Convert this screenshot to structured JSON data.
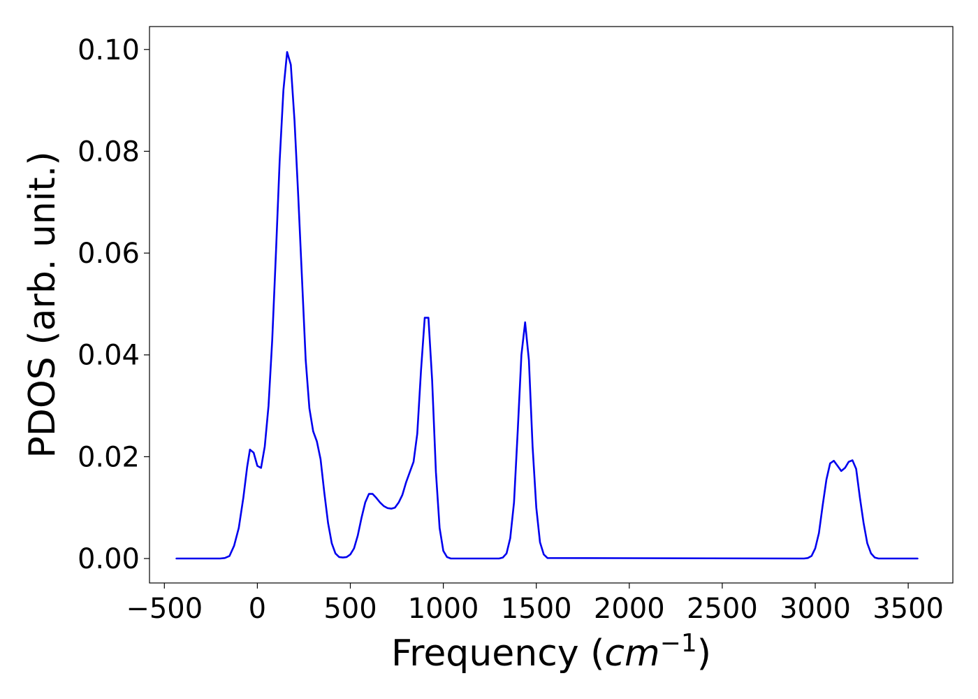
{
  "chart_data": {
    "type": "line",
    "title": "",
    "xlabel_main": "Frequency (",
    "xlabel_unit": "cm",
    "xlabel_exp": "−1",
    "xlabel_close": ")",
    "ylabel": "PDOS (arb. unit.)",
    "xlim": [
      -580,
      3740
    ],
    "ylim": [
      -0.0048,
      0.1045
    ],
    "xticks": [
      -500,
      0,
      500,
      1000,
      1500,
      2000,
      2500,
      3000,
      3500
    ],
    "xtick_labels": [
      "−500",
      "0",
      "500",
      "1000",
      "1500",
      "2000",
      "2500",
      "3000",
      "3500"
    ],
    "yticks": [
      0.0,
      0.02,
      0.04,
      0.06,
      0.08,
      0.1
    ],
    "ytick_labels": [
      "0.00",
      "0.02",
      "0.04",
      "0.06",
      "0.08",
      "0.10"
    ],
    "grid": false,
    "legend": "none",
    "line_color": "#0000ee",
    "series": [
      {
        "x": [
          -435,
          -200,
          -175,
          -150,
          -125,
          -100,
          -75,
          -55,
          -40,
          -20,
          0,
          20,
          40,
          60,
          80,
          100,
          120,
          140,
          160,
          180,
          200,
          220,
          240,
          260,
          280,
          300,
          320,
          340,
          360,
          380,
          400,
          420,
          440,
          460,
          480,
          500,
          520,
          540,
          560,
          580,
          600,
          620,
          640,
          660,
          680,
          700,
          720,
          740,
          760,
          780,
          800,
          820,
          840,
          860,
          880,
          900,
          920,
          940,
          960,
          980,
          1000,
          1020,
          1040,
          1300,
          1320,
          1340,
          1360,
          1380,
          1400,
          1420,
          1440,
          1460,
          1480,
          1500,
          1520,
          1540,
          1560,
          2920,
          2940,
          2960,
          2980,
          3000,
          3020,
          3040,
          3060,
          3080,
          3100,
          3120,
          3140,
          3160,
          3180,
          3200,
          3220,
          3240,
          3260,
          3280,
          3300,
          3320,
          3340,
          3550
        ],
        "y": [
          0.0,
          0.0,
          0.0001,
          0.0005,
          0.0025,
          0.006,
          0.012,
          0.018,
          0.0214,
          0.0208,
          0.0182,
          0.0178,
          0.022,
          0.03,
          0.043,
          0.06,
          0.078,
          0.092,
          0.0995,
          0.097,
          0.086,
          0.071,
          0.055,
          0.039,
          0.0295,
          0.025,
          0.023,
          0.0195,
          0.013,
          0.007,
          0.003,
          0.001,
          0.0003,
          0.0002,
          0.0003,
          0.0008,
          0.002,
          0.0045,
          0.008,
          0.011,
          0.0127,
          0.0127,
          0.0119,
          0.011,
          0.0103,
          0.0099,
          0.0098,
          0.01,
          0.011,
          0.0125,
          0.015,
          0.017,
          0.019,
          0.0245,
          0.037,
          0.0473,
          0.0473,
          0.035,
          0.017,
          0.006,
          0.0015,
          0.0003,
          0.0,
          0.0,
          0.0002,
          0.001,
          0.004,
          0.011,
          0.025,
          0.04,
          0.0464,
          0.039,
          0.022,
          0.01,
          0.0032,
          0.0008,
          0.0001,
          0.0,
          0.0,
          0.0001,
          0.0005,
          0.002,
          0.005,
          0.0105,
          0.0155,
          0.0187,
          0.0192,
          0.0182,
          0.0172,
          0.0178,
          0.019,
          0.0193,
          0.0176,
          0.012,
          0.007,
          0.003,
          0.001,
          0.0002,
          0.0,
          0.0
        ]
      }
    ]
  }
}
